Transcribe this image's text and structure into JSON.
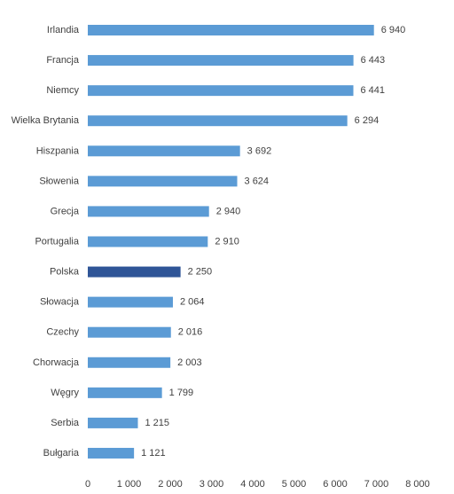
{
  "chart_data": {
    "type": "bar",
    "orientation": "horizontal",
    "title": "",
    "xlabel": "",
    "ylabel": "",
    "xlim": [
      0,
      8000
    ],
    "grid": false,
    "legend": "none",
    "categories": [
      "Irlandia",
      "Francja",
      "Niemcy",
      "Wielka Brytania",
      "Hiszpania",
      "Słowenia",
      "Grecja",
      "Portugalia",
      "Polska",
      "Słowacja",
      "Czechy",
      "Chorwacja",
      "Węgry",
      "Serbia",
      "Bułgaria"
    ],
    "values": [
      6940,
      6443,
      6441,
      6294,
      3692,
      3624,
      2940,
      2910,
      2250,
      2064,
      2016,
      2003,
      1799,
      1215,
      1121
    ],
    "value_labels": [
      "6 940",
      "6 443",
      "6 441",
      "6 294",
      "3 692",
      "3 624",
      "2 940",
      "2 910",
      "2 250",
      "2 064",
      "2 016",
      "2 003",
      "1 799",
      "1 215",
      "1 121"
    ],
    "ticks": [
      0,
      1000,
      2000,
      3000,
      4000,
      5000,
      6000,
      7000,
      8000
    ],
    "tick_labels": [
      "0",
      "1 000",
      "2 000",
      "3 000",
      "4 000",
      "5 000",
      "6 000",
      "7 000",
      "8 000"
    ],
    "highlight_category": "Polska",
    "colors": {
      "bar": "#5b9bd5",
      "highlight": "#2f5597",
      "text": "#404040"
    }
  }
}
